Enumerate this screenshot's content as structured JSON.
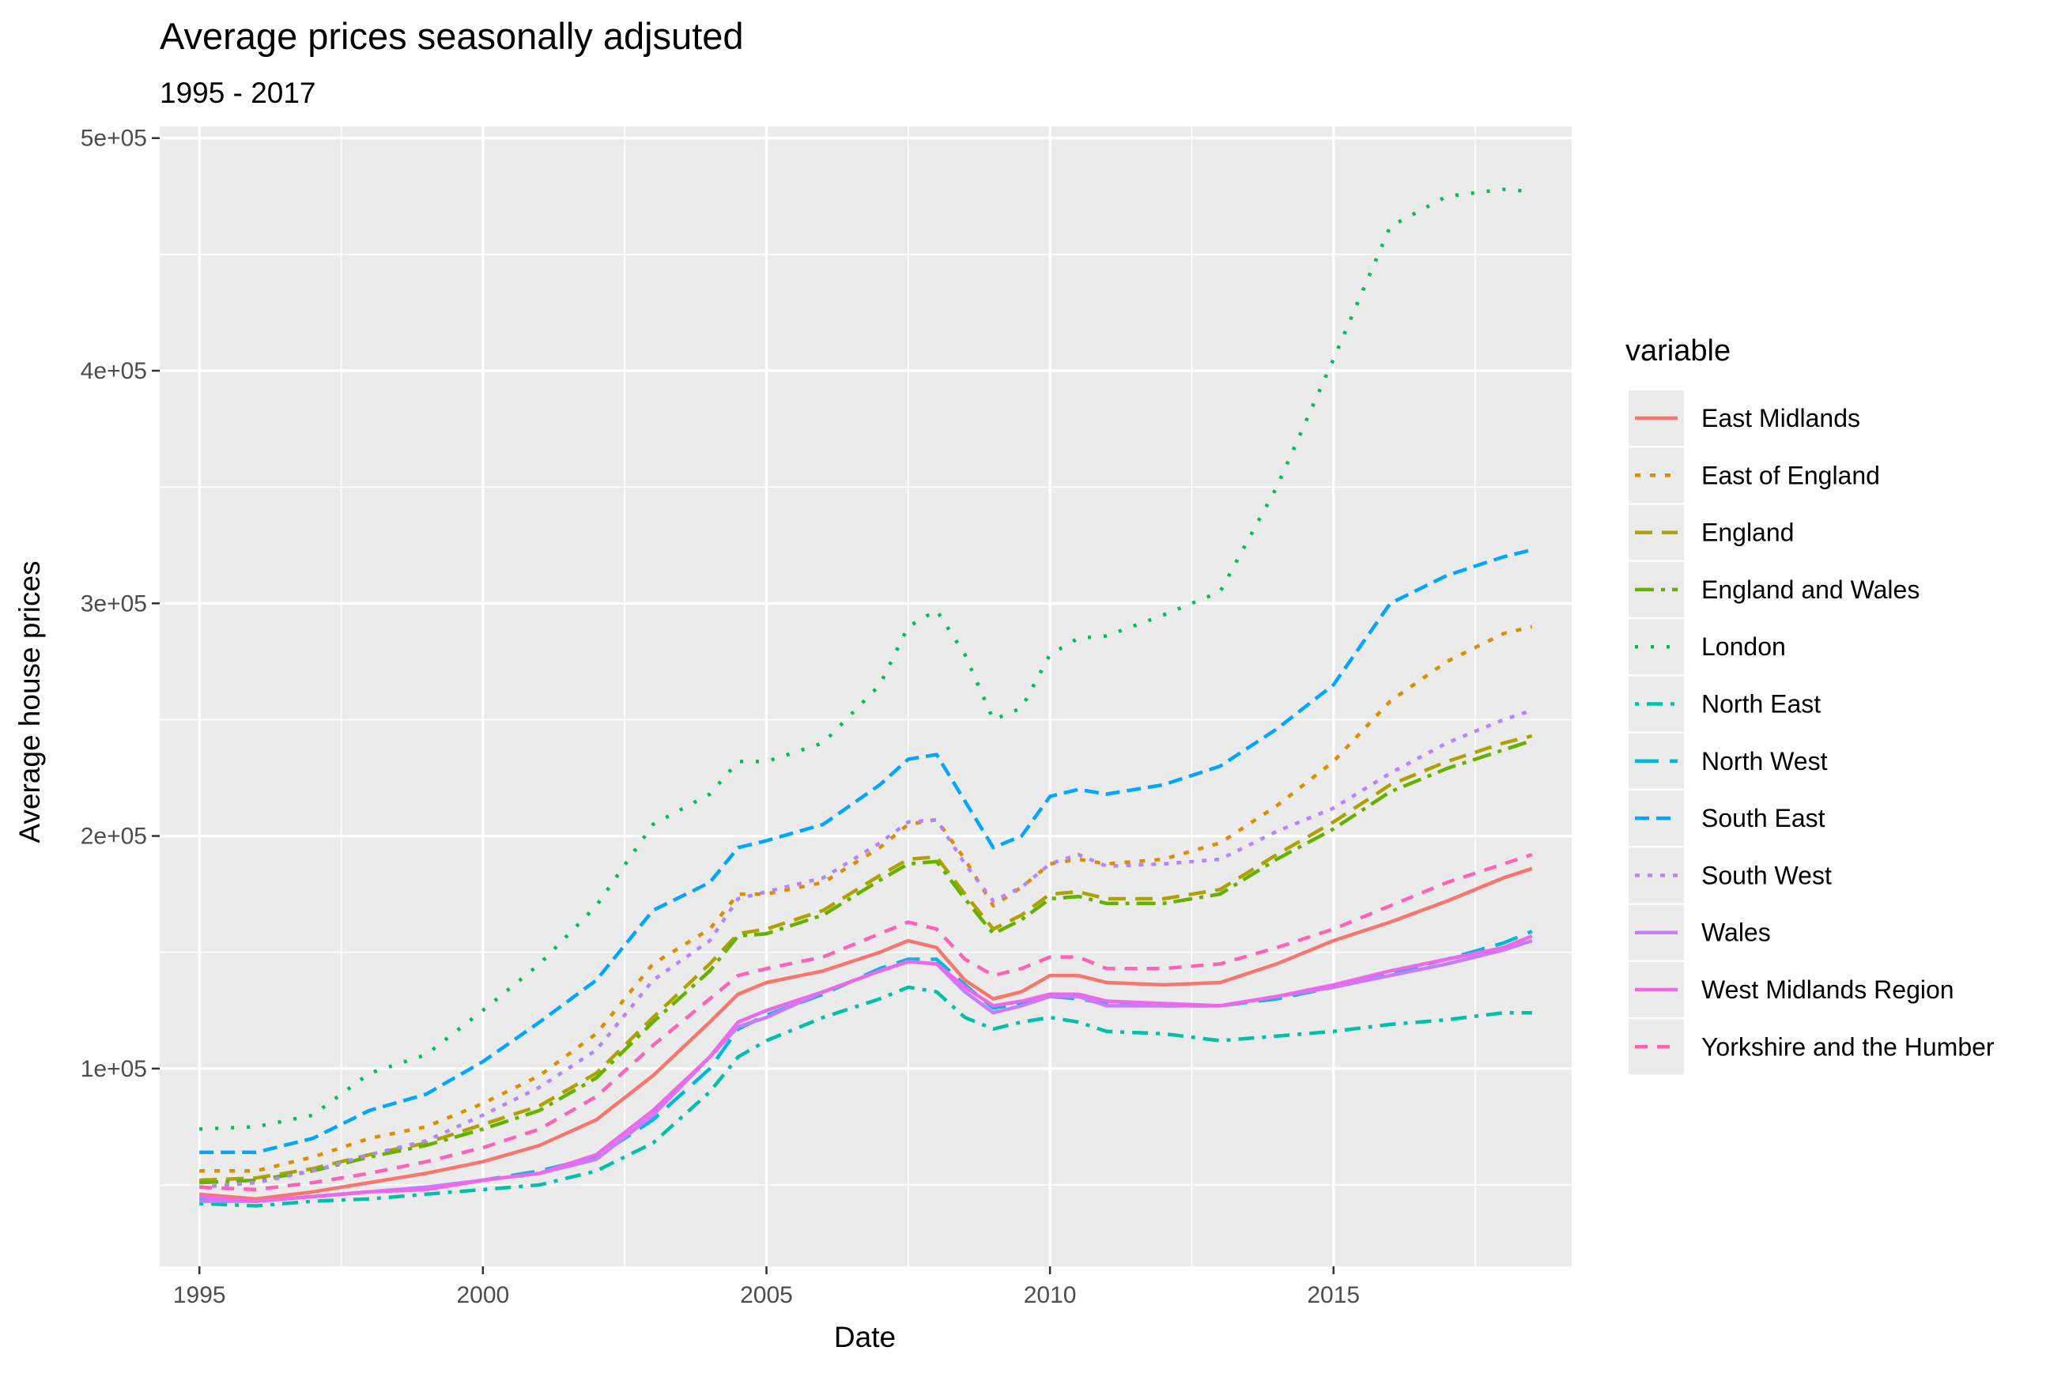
{
  "chart_data": {
    "type": "line",
    "title": "Average prices seasonally adjsuted",
    "subtitle": "1995 - 2017",
    "xlabel": "Date",
    "ylabel": "Average house prices",
    "x_range": [
      1994.3,
      2019.2
    ],
    "y_range": [
      15000,
      505000
    ],
    "x_ticks": [
      1995,
      2000,
      2005,
      2010,
      2015
    ],
    "x_tick_labels": [
      "1995",
      "2000",
      "2005",
      "2010",
      "2015"
    ],
    "y_ticks": [
      100000,
      200000,
      300000,
      400000,
      500000
    ],
    "y_tick_labels": [
      "1e+05",
      "2e+05",
      "3e+05",
      "4e+05",
      "5e+05"
    ],
    "grid": true,
    "legend": {
      "title": "variable",
      "position": "right"
    },
    "series": [
      {
        "name": "East Midlands",
        "color": "#F8766D",
        "dash": "solid",
        "x": [
          1995,
          1996,
          1997,
          1998,
          1999,
          2000,
          2001,
          2002,
          2003,
          2004,
          2004.5,
          2005,
          2006,
          2007,
          2007.5,
          2008,
          2008.5,
          2009,
          2009.5,
          2010,
          2010.5,
          2011,
          2012,
          2013,
          2014,
          2015,
          2016,
          2017,
          2018,
          2018.5
        ],
        "y": [
          46000,
          44000,
          47000,
          51000,
          55000,
          60000,
          67000,
          78000,
          97000,
          120000,
          132000,
          137000,
          142000,
          150000,
          155000,
          152000,
          138000,
          130000,
          133000,
          140000,
          140000,
          137000,
          136000,
          137000,
          145000,
          155000,
          163000,
          172000,
          182000,
          186000
        ]
      },
      {
        "name": "East of England",
        "color": "#DB8E00",
        "dash": "dotted",
        "x": [
          1995,
          1996,
          1997,
          1998,
          1999,
          2000,
          2001,
          2002,
          2003,
          2004,
          2004.5,
          2005,
          2006,
          2007,
          2007.5,
          2008,
          2008.5,
          2009,
          2009.5,
          2010,
          2010.5,
          2011,
          2012,
          2013,
          2014,
          2015,
          2016,
          2017,
          2018,
          2018.5
        ],
        "y": [
          56000,
          56000,
          62000,
          70000,
          75000,
          85000,
          97000,
          115000,
          145000,
          160000,
          175000,
          175000,
          180000,
          195000,
          205000,
          207000,
          190000,
          170000,
          178000,
          188000,
          190000,
          188000,
          190000,
          197000,
          213000,
          232000,
          258000,
          275000,
          287000,
          290000
        ]
      },
      {
        "name": "England",
        "color": "#AEA200",
        "dash": "longdash",
        "x": [
          1995,
          1996,
          1997,
          1998,
          1999,
          2000,
          2001,
          2002,
          2003,
          2004,
          2004.5,
          2005,
          2006,
          2007,
          2007.5,
          2008,
          2008.5,
          2009,
          2009.5,
          2010,
          2010.5,
          2011,
          2012,
          2013,
          2014,
          2015,
          2016,
          2017,
          2018,
          2018.5
        ],
        "y": [
          52000,
          53000,
          57000,
          63000,
          68000,
          76000,
          84000,
          98000,
          122000,
          145000,
          158000,
          160000,
          168000,
          183000,
          190000,
          191000,
          175000,
          160000,
          166000,
          175000,
          176000,
          173000,
          173000,
          177000,
          192000,
          206000,
          222000,
          232000,
          240000,
          243000
        ]
      },
      {
        "name": "England and Wales",
        "color": "#64B200",
        "dash": "dashdot",
        "x": [
          1995,
          1996,
          1997,
          1998,
          1999,
          2000,
          2001,
          2002,
          2003,
          2004,
          2004.5,
          2005,
          2006,
          2007,
          2007.5,
          2008,
          2008.5,
          2009,
          2009.5,
          2010,
          2010.5,
          2011,
          2012,
          2013,
          2014,
          2015,
          2016,
          2017,
          2018,
          2018.5
        ],
        "y": [
          51000,
          52000,
          56000,
          62000,
          67000,
          74000,
          82000,
          96000,
          120000,
          142000,
          157000,
          158000,
          166000,
          181000,
          188000,
          189000,
          173000,
          158000,
          164000,
          173000,
          174000,
          171000,
          171000,
          175000,
          190000,
          203000,
          219000,
          229000,
          237000,
          241000
        ]
      },
      {
        "name": "London",
        "color": "#00BD5C",
        "dash": "dotted2",
        "x": [
          1995,
          1996,
          1997,
          1998,
          1999,
          2000,
          2001,
          2002,
          2003,
          2004,
          2004.5,
          2005,
          2006,
          2007,
          2007.5,
          2008,
          2008.5,
          2009,
          2009.5,
          2010,
          2010.5,
          2011,
          2012,
          2013,
          2014,
          2015,
          2016,
          2017,
          2018,
          2018.5
        ],
        "y": [
          74000,
          75000,
          80000,
          98000,
          106000,
          125000,
          145000,
          170000,
          205000,
          218000,
          232000,
          232000,
          240000,
          265000,
          290000,
          297000,
          278000,
          250000,
          255000,
          278000,
          285000,
          286000,
          295000,
          305000,
          350000,
          405000,
          462000,
          475000,
          478000,
          477000
        ]
      },
      {
        "name": "North East",
        "color": "#00C1A7",
        "dash": "dotdash",
        "x": [
          1995,
          1996,
          1997,
          1998,
          1999,
          2000,
          2001,
          2002,
          2003,
          2004,
          2004.5,
          2005,
          2006,
          2007,
          2007.5,
          2008,
          2008.5,
          2009,
          2009.5,
          2010,
          2010.5,
          2011,
          2012,
          2013,
          2014,
          2015,
          2016,
          2017,
          2018,
          2018.5
        ],
        "y": [
          42000,
          41000,
          43000,
          44000,
          46000,
          48000,
          50000,
          56000,
          68000,
          90000,
          105000,
          112000,
          122000,
          130000,
          135000,
          133000,
          122000,
          117000,
          120000,
          122000,
          120000,
          116000,
          115000,
          112000,
          114000,
          116000,
          119000,
          121000,
          124000,
          124000
        ]
      },
      {
        "name": "North West",
        "color": "#00BADE",
        "dash": "longdash2",
        "x": [
          1995,
          1996,
          1997,
          1998,
          1999,
          2000,
          2001,
          2002,
          2003,
          2004,
          2004.5,
          2005,
          2006,
          2007,
          2007.5,
          2008,
          2008.5,
          2009,
          2009.5,
          2010,
          2010.5,
          2011,
          2012,
          2013,
          2014,
          2015,
          2016,
          2017,
          2018,
          2018.5
        ],
        "y": [
          44000,
          43000,
          45000,
          47000,
          49000,
          52000,
          56000,
          62000,
          78000,
          100000,
          117000,
          123000,
          132000,
          143000,
          147000,
          147000,
          136000,
          126000,
          128000,
          131000,
          130000,
          128000,
          127000,
          127000,
          130000,
          135000,
          141000,
          147000,
          154000,
          159000
        ]
      },
      {
        "name": "South East",
        "color": "#00A6FF",
        "dash": "dashed",
        "x": [
          1995,
          1996,
          1997,
          1998,
          1999,
          2000,
          2001,
          2002,
          2003,
          2004,
          2004.5,
          2005,
          2006,
          2007,
          2007.5,
          2008,
          2008.5,
          2009,
          2009.5,
          2010,
          2010.5,
          2011,
          2012,
          2013,
          2014,
          2015,
          2016,
          2017,
          2018,
          2018.5
        ],
        "y": [
          64000,
          64000,
          70000,
          82000,
          89000,
          103000,
          120000,
          138000,
          168000,
          180000,
          195000,
          198000,
          205000,
          222000,
          233000,
          235000,
          215000,
          195000,
          200000,
          217000,
          220000,
          218000,
          222000,
          230000,
          246000,
          265000,
          300000,
          312000,
          320000,
          323000
        ]
      },
      {
        "name": "South West",
        "color": "#B385FF",
        "dash": "dotted3",
        "x": [
          1995,
          1996,
          1997,
          1998,
          1999,
          2000,
          2001,
          2002,
          2003,
          2004,
          2004.5,
          2005,
          2006,
          2007,
          2007.5,
          2008,
          2008.5,
          2009,
          2009.5,
          2010,
          2010.5,
          2011,
          2012,
          2013,
          2014,
          2015,
          2016,
          2017,
          2018,
          2018.5
        ],
        "y": [
          49000,
          51000,
          56000,
          63000,
          69000,
          80000,
          92000,
          108000,
          138000,
          155000,
          173000,
          176000,
          182000,
          197000,
          206000,
          207000,
          188000,
          172000,
          178000,
          188000,
          192000,
          187000,
          188000,
          190000,
          202000,
          212000,
          227000,
          240000,
          250000,
          254000
        ]
      },
      {
        "name": "Wales",
        "color": "#C77CFF",
        "dash": "solid",
        "x": [
          1995,
          1996,
          1997,
          1998,
          1999,
          2000,
          2001,
          2002,
          2003,
          2004,
          2004.5,
          2005,
          2006,
          2007,
          2007.5,
          2008,
          2008.5,
          2009,
          2009.5,
          2010,
          2010.5,
          2011,
          2012,
          2013,
          2014,
          2015,
          2016,
          2017,
          2018,
          2018.5
        ],
        "y": [
          43000,
          43000,
          45000,
          47000,
          49000,
          52000,
          55000,
          61000,
          80000,
          105000,
          118000,
          122000,
          133000,
          142000,
          146000,
          145000,
          133000,
          124000,
          127000,
          131000,
          131000,
          127000,
          127000,
          127000,
          131000,
          135000,
          140000,
          145000,
          151000,
          155000
        ]
      },
      {
        "name": "West Midlands Region",
        "color": "#EF67EB",
        "dash": "solid",
        "x": [
          1995,
          1996,
          1997,
          1998,
          1999,
          2000,
          2001,
          2002,
          2003,
          2004,
          2004.5,
          2005,
          2006,
          2007,
          2007.5,
          2008,
          2008.5,
          2009,
          2009.5,
          2010,
          2010.5,
          2011,
          2012,
          2013,
          2014,
          2015,
          2016,
          2017,
          2018,
          2018.5
        ],
        "y": [
          45000,
          43000,
          45000,
          47000,
          48000,
          52000,
          55000,
          63000,
          82000,
          105000,
          120000,
          125000,
          133000,
          142000,
          146000,
          145000,
          135000,
          127000,
          129000,
          132000,
          132000,
          129000,
          128000,
          127000,
          131000,
          136000,
          142000,
          147000,
          152000,
          157000
        ]
      },
      {
        "name": "Yorkshire and the Humber",
        "color": "#FF63B6",
        "dash": "dashed2",
        "x": [
          1995,
          1996,
          1997,
          1998,
          1999,
          2000,
          2001,
          2002,
          2003,
          2004,
          2004.5,
          2005,
          2006,
          2007,
          2007.5,
          2008,
          2008.5,
          2009,
          2009.5,
          2010,
          2010.5,
          2011,
          2012,
          2013,
          2014,
          2015,
          2016,
          2017,
          2018,
          2018.5
        ],
        "y": [
          49000,
          48000,
          51000,
          55000,
          60000,
          66000,
          74000,
          88000,
          110000,
          130000,
          140000,
          143000,
          148000,
          158000,
          163000,
          160000,
          147000,
          140000,
          143000,
          148000,
          148000,
          143000,
          143000,
          145000,
          152000,
          160000,
          170000,
          180000,
          188000,
          192000
        ]
      }
    ]
  }
}
